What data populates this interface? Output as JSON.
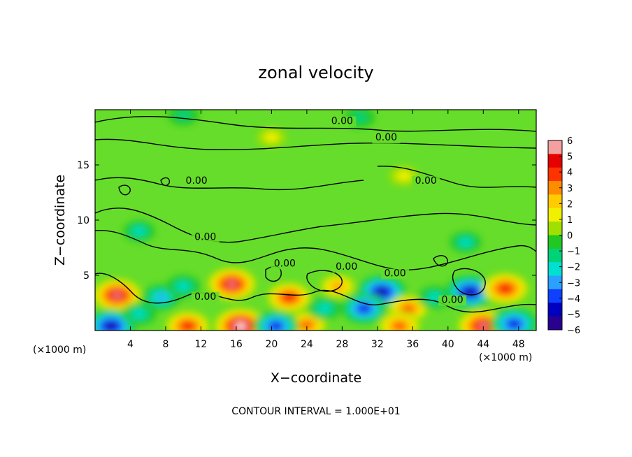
{
  "chart_data": {
    "type": "heatmap",
    "title": "zonal velocity",
    "xlabel": "X−coordinate",
    "ylabel": "Z−coordinate",
    "x_unit": "(×1000 m)",
    "x_unit_right": "(×1000 m)",
    "xlim": [
      0,
      50
    ],
    "ylim": [
      0,
      20
    ],
    "x_ticks": [
      4,
      8,
      12,
      16,
      20,
      24,
      28,
      32,
      36,
      40,
      44,
      48
    ],
    "y_ticks": [
      5,
      10,
      15
    ],
    "colorbar": {
      "min": -6,
      "max": 6,
      "ticks": [
        "6",
        "5",
        "4",
        "3",
        "2",
        "1",
        "0",
        "−1",
        "−2",
        "−3",
        "−4",
        "−5",
        "−6"
      ],
      "colors": [
        "#f4a0a0",
        "#e60000",
        "#ff3300",
        "#ff8c00",
        "#ffcc00",
        "#f0f000",
        "#a0e000",
        "#22c822",
        "#00d27a",
        "#00e0d0",
        "#2aa0ff",
        "#1040ff",
        "#0000c0",
        "#2a0090"
      ]
    },
    "contour_label": "0.00",
    "contour_level": 0,
    "blobs": [
      {
        "x": 2.5,
        "z": 3.2,
        "v": 5.5
      },
      {
        "x": 1.8,
        "z": 0.4,
        "v": -5.6
      },
      {
        "x": 10.5,
        "z": 0.4,
        "v": 4.5
      },
      {
        "x": 7.5,
        "z": 3.0,
        "v": -3.0
      },
      {
        "x": 5.0,
        "z": 1.5,
        "v": -2.0
      },
      {
        "x": 15.5,
        "z": 4.2,
        "v": 5.5
      },
      {
        "x": 16.5,
        "z": 0.4,
        "v": 6.5
      },
      {
        "x": 22.0,
        "z": 3.0,
        "v": 4.5
      },
      {
        "x": 24.0,
        "z": 0.5,
        "v": 3.5
      },
      {
        "x": 20.5,
        "z": 0.4,
        "v": -4.5
      },
      {
        "x": 27.5,
        "z": 4.0,
        "v": 2.5
      },
      {
        "x": 32.5,
        "z": 3.5,
        "v": -5.5
      },
      {
        "x": 30.5,
        "z": 2.0,
        "v": -4.5
      },
      {
        "x": 35.5,
        "z": 2.0,
        "v": 3.5
      },
      {
        "x": 34.5,
        "z": 0.4,
        "v": 4.0
      },
      {
        "x": 42.5,
        "z": 3.5,
        "v": -5.5
      },
      {
        "x": 46.5,
        "z": 3.8,
        "v": 5.0
      },
      {
        "x": 44.0,
        "z": 0.4,
        "v": 6.0
      },
      {
        "x": 47.5,
        "z": 0.6,
        "v": -5.0
      },
      {
        "x": 10.0,
        "z": 4.0,
        "v": -2.0
      },
      {
        "x": 38.5,
        "z": 3.0,
        "v": -2.0
      },
      {
        "x": 26.0,
        "z": 2.0,
        "v": -2.0
      },
      {
        "x": 20.0,
        "z": 17.5,
        "v": 0.9
      },
      {
        "x": 35.0,
        "z": 14.0,
        "v": 0.9
      },
      {
        "x": 10.0,
        "z": 19.5,
        "v": -1.2
      },
      {
        "x": 30.0,
        "z": 19.3,
        "v": -1.2
      },
      {
        "x": 42.0,
        "z": 8.0,
        "v": -1.5
      },
      {
        "x": 5.0,
        "z": 9.0,
        "v": -1.5
      }
    ],
    "contour_labels": [
      {
        "x": 28.0,
        "z": 18.7
      },
      {
        "x": 33.0,
        "z": 17.2
      },
      {
        "x": 37.5,
        "z": 13.3
      },
      {
        "x": 11.5,
        "z": 13.3
      },
      {
        "x": 12.5,
        "z": 8.2
      },
      {
        "x": 21.5,
        "z": 5.8
      },
      {
        "x": 28.5,
        "z": 5.5
      },
      {
        "x": 34.0,
        "z": 4.9
      },
      {
        "x": 40.5,
        "z": 2.5
      },
      {
        "x": 12.5,
        "z": 2.8
      }
    ]
  },
  "footer": {
    "note": "CONTOUR INTERVAL = 1.000E+01"
  }
}
